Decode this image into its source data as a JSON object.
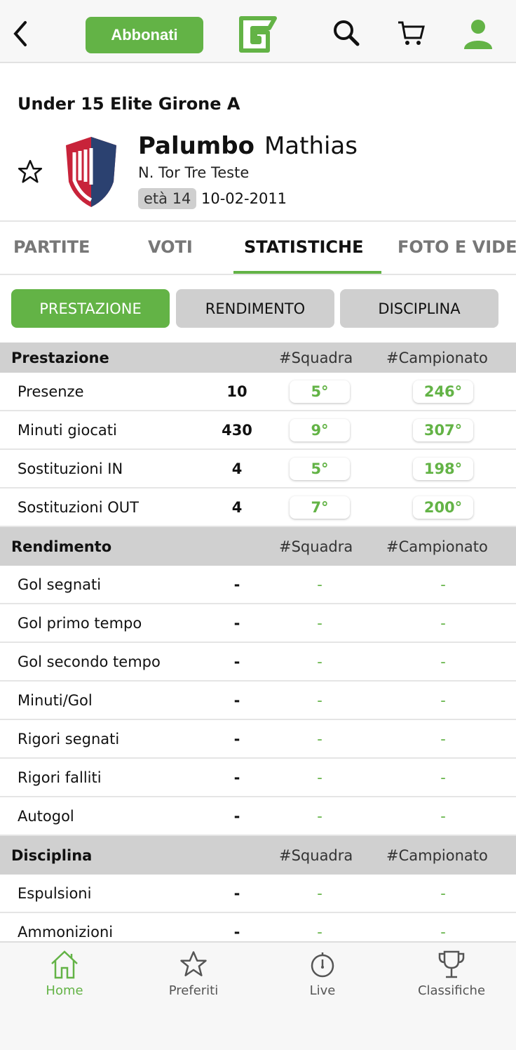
{
  "header": {
    "subscribe_label": "Abbonati",
    "brand_color": "#63b346"
  },
  "competition": "Under 15 Elite  Girone A",
  "player": {
    "surname": "Palumbo",
    "name": "Mathias",
    "team": "N. Tor Tre Teste",
    "age": "età 14",
    "dob": "10-02-2011"
  },
  "tabs": [
    {
      "label": "PARTITE"
    },
    {
      "label": "VOTI"
    },
    {
      "label": "STATISTICHE",
      "active": true
    },
    {
      "label": "FOTO E VIDEO"
    }
  ],
  "segments": [
    {
      "label": "PRESTAZIONE",
      "active": true
    },
    {
      "label": "RENDIMENTO"
    },
    {
      "label": "DISCIPLINA"
    }
  ],
  "sections": [
    {
      "title": "Prestazione",
      "col1": "#Squadra",
      "col2": "#Campionato",
      "rows": [
        {
          "label": "Presenze",
          "value": "10",
          "team_rank": "5°",
          "league_rank": "246°"
        },
        {
          "label": "Minuti giocati",
          "value": "430",
          "team_rank": "9°",
          "league_rank": "307°"
        },
        {
          "label": "Sostituzioni IN",
          "value": "4",
          "team_rank": "5°",
          "league_rank": "198°"
        },
        {
          "label": "Sostituzioni OUT",
          "value": "4",
          "team_rank": "7°",
          "league_rank": "200°"
        }
      ]
    },
    {
      "title": "Rendimento",
      "col1": "#Squadra",
      "col2": "#Campionato",
      "rows": [
        {
          "label": "Gol segnati",
          "value": "-",
          "team_rank": "-",
          "league_rank": "-"
        },
        {
          "label": "Gol primo tempo",
          "value": "-",
          "team_rank": "-",
          "league_rank": "-"
        },
        {
          "label": "Gol secondo tempo",
          "value": "-",
          "team_rank": "-",
          "league_rank": "-"
        },
        {
          "label": "Minuti/Gol",
          "value": "-",
          "team_rank": "-",
          "league_rank": "-"
        },
        {
          "label": "Rigori segnati",
          "value": "-",
          "team_rank": "-",
          "league_rank": "-"
        },
        {
          "label": "Rigori falliti",
          "value": "-",
          "team_rank": "-",
          "league_rank": "-"
        },
        {
          "label": "Autogol",
          "value": "-",
          "team_rank": "-",
          "league_rank": "-"
        }
      ]
    },
    {
      "title": "Disciplina",
      "col1": "#Squadra",
      "col2": "#Campionato",
      "rows": [
        {
          "label": "Espulsioni",
          "value": "-",
          "team_rank": "-",
          "league_rank": "-"
        },
        {
          "label": "Ammonizioni",
          "value": "-",
          "team_rank": "-",
          "league_rank": "-"
        }
      ]
    }
  ],
  "bottom_nav": [
    {
      "label": "Home",
      "icon": "home-icon",
      "active": true
    },
    {
      "label": "Preferiti",
      "icon": "star-icon"
    },
    {
      "label": "Live",
      "icon": "stopwatch-icon"
    },
    {
      "label": "Classifiche",
      "icon": "trophy-icon"
    }
  ]
}
